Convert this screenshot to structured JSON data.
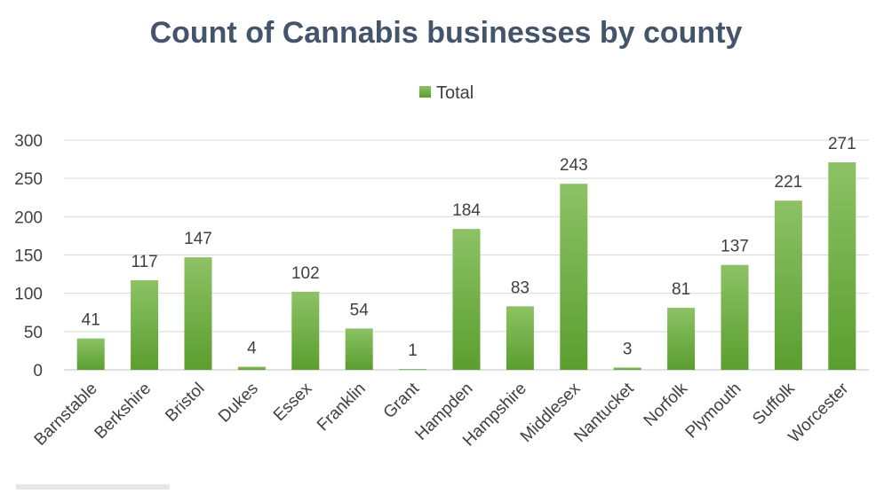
{
  "chart_data": {
    "type": "bar",
    "title": "Count of Cannabis businesses by county",
    "categories": [
      "Barnstable",
      "Berkshire",
      "Bristol",
      "Dukes",
      "Essex",
      "Franklin",
      "Grant",
      "Hampden",
      "Hampshire",
      "Middlesex",
      "Nantucket",
      "Norfolk",
      "Plymouth",
      "Suffolk",
      "Worcester"
    ],
    "series": [
      {
        "name": "Total",
        "values": [
          41,
          117,
          147,
          4,
          102,
          54,
          1,
          184,
          83,
          243,
          3,
          81,
          137,
          221,
          271
        ],
        "color": "#70ad47"
      }
    ],
    "xlabel": "",
    "ylabel": "",
    "ylim": [
      0,
      300
    ],
    "yticks": [
      0,
      50,
      100,
      150,
      200,
      250,
      300
    ],
    "grid": true,
    "legend_position": "top",
    "data_labels": true
  }
}
